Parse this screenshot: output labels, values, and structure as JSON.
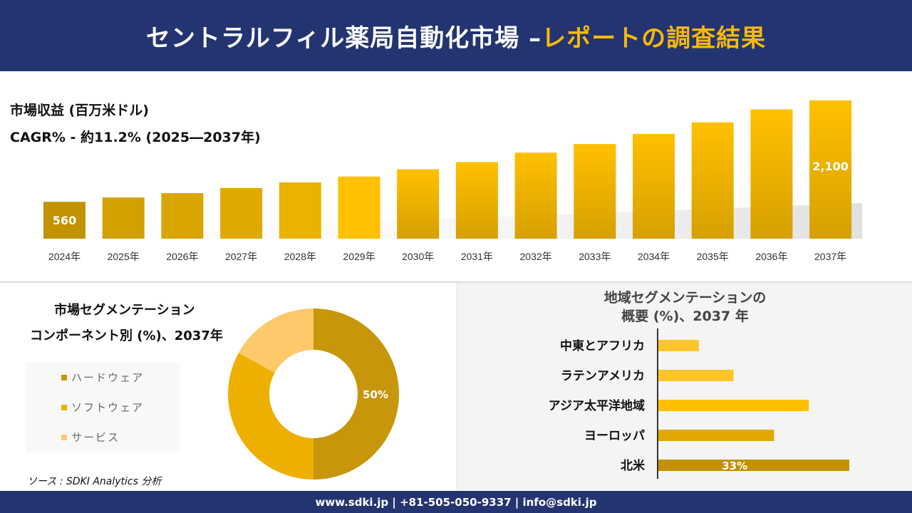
{
  "header": {
    "title_main": "セントラルフィル薬局自動化市場 –",
    "title_highlight": "レポートの調査結果"
  },
  "revenue": {
    "label": "市場収益 (百万米ドル)",
    "cagr": "CAGR% - 約11.2% (2025―2037年)"
  },
  "chart_data": [
    {
      "type": "bar",
      "title": "市場収益 (百万米ドル)",
      "subtitle": "CAGR% - 約11.2% (2025―2037年)",
      "categories": [
        "2024年",
        "2025年",
        "2026年",
        "2027年",
        "2028年",
        "2029年",
        "2030年",
        "2031年",
        "2032年",
        "2033年",
        "2034年",
        "2035年",
        "2036年",
        "2037年"
      ],
      "values": [
        560,
        626,
        692,
        769,
        856,
        944,
        1054,
        1164,
        1307,
        1438,
        1592,
        1768,
        1965,
        2100
      ],
      "data_labels": {
        "0": "560",
        "13": "2,100"
      },
      "ylim": [
        0,
        2100
      ]
    },
    {
      "type": "pie",
      "variant": "donut",
      "title": "市場セグメンテーション コンポーネント別 (%)、2037年",
      "labels": [
        "ハードウェア",
        "ソフトウェア",
        "サービス"
      ],
      "values": [
        50,
        33,
        17
      ],
      "colors": [
        "#c8960a",
        "#eeb000",
        "#fdc96a"
      ],
      "data_labels": {
        "0": "50%"
      },
      "legend": "left"
    },
    {
      "type": "bar",
      "orientation": "horizontal",
      "title": "地域セグメンテーションの概要 (%)、2037 年",
      "categories": [
        "中東とアフリカ",
        "ラテンアメリカ",
        "アジア太平洋地域",
        "ヨーロッパ",
        "北米"
      ],
      "values": [
        7,
        13,
        26,
        20,
        33
      ],
      "colors": [
        "#fec42a",
        "#fec42a",
        "#ffc000",
        "#e2a800",
        "#c29200"
      ],
      "data_labels": {
        "4": "33%"
      }
    }
  ],
  "segment": {
    "title_line1": "市場セグメンテーション",
    "title_line2": "コンポーネント別 (%)、2037年"
  },
  "region": {
    "title_line1": "地域セグメンテーションの",
    "title_line2": "概要 (%)、2037 年"
  },
  "source": "ソース : SDKI Analytics 分析",
  "footer": "www.sdki.jp | +81-505-050-9337 | info@sdki.jp"
}
